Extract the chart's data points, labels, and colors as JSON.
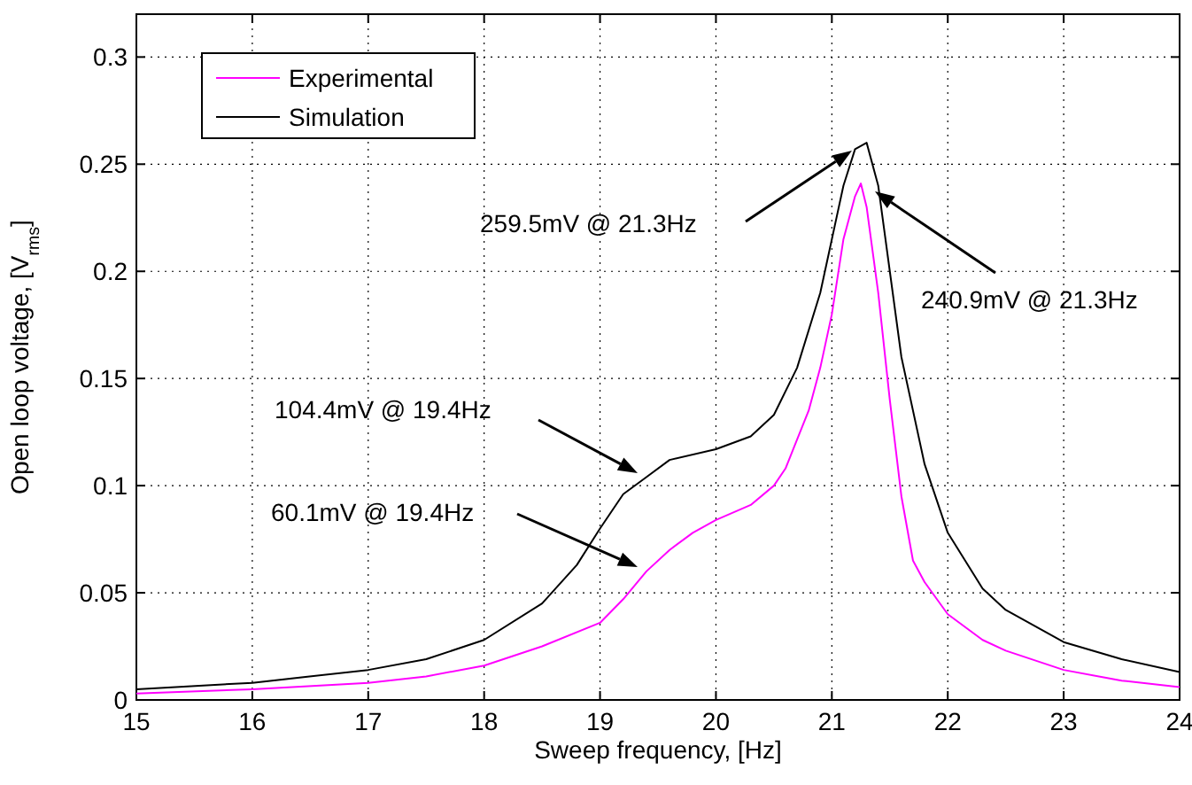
{
  "chart_data": {
    "type": "line",
    "xlabel": "Sweep frequency, [Hz]",
    "ylabel": "Open loop voltage, [V$_{rms}$]",
    "xlim": [
      15,
      24
    ],
    "ylim": [
      0,
      0.32
    ],
    "xticks": [
      15,
      16,
      17,
      18,
      19,
      20,
      21,
      22,
      23,
      24
    ],
    "yticks": [
      0,
      0.05,
      0.1,
      0.15,
      0.2,
      0.25,
      0.3
    ],
    "grid": true,
    "legend": "top left",
    "line_style": "solid",
    "marker": "none",
    "series": [
      {
        "name": "Experimental",
        "color": "#ff00ff",
        "x": [
          15,
          16,
          17,
          17.5,
          18,
          18.5,
          19,
          19.2,
          19.4,
          19.6,
          19.8,
          20,
          20.3,
          20.5,
          20.6,
          20.8,
          20.9,
          21,
          21.1,
          21.2,
          21.25,
          21.3,
          21.4,
          21.5,
          21.6,
          21.7,
          21.8,
          22,
          22.3,
          22.5,
          23,
          23.5,
          24
        ],
        "values": [
          0.003,
          0.005,
          0.008,
          0.011,
          0.016,
          0.025,
          0.036,
          0.047,
          0.06,
          0.07,
          0.078,
          0.084,
          0.091,
          0.1,
          0.108,
          0.135,
          0.155,
          0.18,
          0.215,
          0.235,
          0.241,
          0.23,
          0.19,
          0.14,
          0.095,
          0.065,
          0.055,
          0.04,
          0.028,
          0.023,
          0.014,
          0.009,
          0.006
        ]
      },
      {
        "name": "Simulation",
        "color": "#000000",
        "x": [
          15,
          16,
          17,
          17.5,
          18,
          18.5,
          18.8,
          19,
          19.2,
          19.4,
          19.6,
          20,
          20.3,
          20.5,
          20.7,
          20.9,
          21,
          21.1,
          21.2,
          21.3,
          21.4,
          21.5,
          21.6,
          21.8,
          22,
          22.3,
          22.5,
          23,
          23.5,
          24
        ],
        "values": [
          0.005,
          0.008,
          0.014,
          0.019,
          0.028,
          0.045,
          0.063,
          0.08,
          0.096,
          0.104,
          0.112,
          0.117,
          0.123,
          0.133,
          0.155,
          0.19,
          0.215,
          0.24,
          0.257,
          0.26,
          0.24,
          0.2,
          0.16,
          0.11,
          0.078,
          0.052,
          0.042,
          0.027,
          0.019,
          0.013
        ]
      }
    ],
    "annotations": [
      "259.5mV @ 21.3Hz",
      "240.9mV @ 21.3Hz",
      "104.4mV @ 19.4Hz",
      "60.1mV @ 19.4Hz"
    ]
  }
}
